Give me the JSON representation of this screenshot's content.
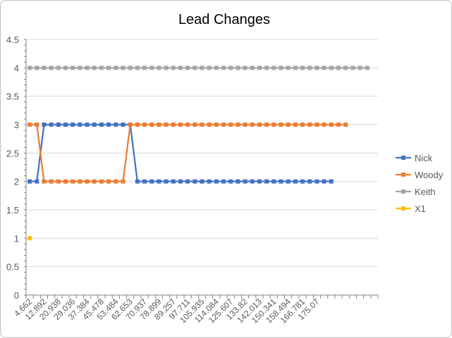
{
  "chart_data": {
    "type": "line",
    "title": "Lead Changes",
    "xlabel": "",
    "ylabel": "",
    "ylim": [
      0,
      4.5
    ],
    "y_ticks": [
      "0",
      "0.5",
      "1",
      "1.5",
      "2",
      "2.5",
      "3",
      "3.5",
      "4",
      "4.5"
    ],
    "x_tick_labels": [
      "4.662",
      "12.892",
      "20.938",
      "29.036",
      "37.384",
      "45.478",
      "53.484",
      "62.653",
      "70.937",
      "78.899",
      "89.257",
      "97.711",
      "105.935",
      "114.084",
      "125.607",
      "133.82",
      "142.013",
      "150.341",
      "158.494",
      "166.781",
      "175.07"
    ],
    "grid": true,
    "legend_position": "right",
    "series": [
      {
        "name": "Nick",
        "color": "#4472c4",
        "values": [
          2,
          2,
          3,
          3,
          3,
          3,
          3,
          3,
          3,
          3,
          3,
          3,
          3,
          3,
          3,
          2,
          2,
          2,
          2,
          2,
          2,
          2,
          2,
          2,
          2,
          2,
          2,
          2,
          2,
          2,
          2,
          2,
          2,
          2,
          2,
          2,
          2,
          2,
          2,
          2,
          2,
          2,
          2
        ]
      },
      {
        "name": "Woody",
        "color": "#ed7d31",
        "values": [
          3,
          3,
          2,
          2,
          2,
          2,
          2,
          2,
          2,
          2,
          2,
          2,
          2,
          2,
          3,
          3,
          3,
          3,
          3,
          3,
          3,
          3,
          3,
          3,
          3,
          3,
          3,
          3,
          3,
          3,
          3,
          3,
          3,
          3,
          3,
          3,
          3,
          3,
          3,
          3,
          3,
          3,
          3,
          3,
          3
        ]
      },
      {
        "name": "Keith",
        "color": "#a5a5a5",
        "values": [
          4,
          4,
          4,
          4,
          4,
          4,
          4,
          4,
          4,
          4,
          4,
          4,
          4,
          4,
          4,
          4,
          4,
          4,
          4,
          4,
          4,
          4,
          4,
          4,
          4,
          4,
          4,
          4,
          4,
          4,
          4,
          4,
          4,
          4,
          4,
          4,
          4,
          4,
          4,
          4,
          4,
          4,
          4,
          4,
          4,
          4,
          4,
          4
        ]
      },
      {
        "name": "X1",
        "color": "#ffc000",
        "values": [
          1
        ]
      }
    ]
  }
}
